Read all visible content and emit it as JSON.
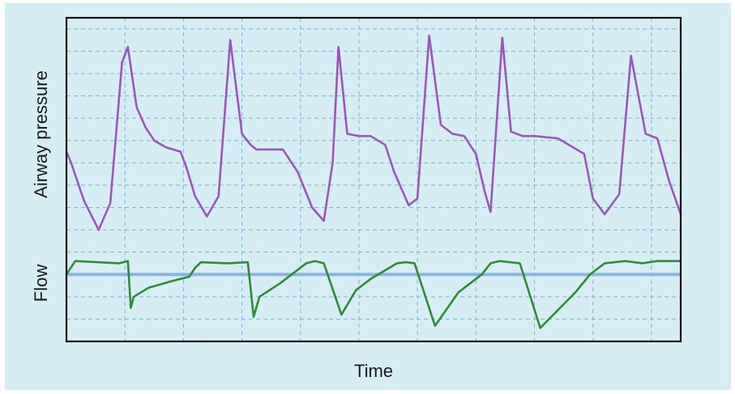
{
  "chart_data": {
    "type": "line",
    "title": "",
    "xlabel": "Time",
    "ylabels": [
      "Airway pressure",
      "Flow"
    ],
    "grid": true,
    "xlim": [
      0,
      10.5
    ],
    "ylim": [
      0,
      14.5
    ],
    "series": [
      {
        "name": "",
        "label_ref": "Airway pressure",
        "color": "#9b57b6",
        "x": [
          0.0,
          0.08,
          0.3,
          0.55,
          0.75,
          0.95,
          1.05,
          1.2,
          1.35,
          1.5,
          1.7,
          1.95,
          2.05,
          2.2,
          2.4,
          2.6,
          2.8,
          3.0,
          3.15,
          3.25,
          3.45,
          3.7,
          3.95,
          4.2,
          4.4,
          4.55,
          4.65,
          4.8,
          5.0,
          5.2,
          5.45,
          5.6,
          5.85,
          6.0,
          6.2,
          6.4,
          6.6,
          6.8,
          7.0,
          7.15,
          7.25,
          7.45,
          7.6,
          7.8,
          8.0,
          8.4,
          8.85,
          9.0,
          9.2,
          9.45,
          9.65,
          9.9,
          10.1,
          10.3,
          10.5
        ],
        "y": [
          8.5,
          8.0,
          6.3,
          5.0,
          6.2,
          12.5,
          13.2,
          10.5,
          9.6,
          9.0,
          8.7,
          8.5,
          7.8,
          6.5,
          5.6,
          6.5,
          13.5,
          9.3,
          8.8,
          8.6,
          8.6,
          8.6,
          7.6,
          6.0,
          5.4,
          8.0,
          13.2,
          9.3,
          9.2,
          9.2,
          8.8,
          7.6,
          6.1,
          6.4,
          13.7,
          9.7,
          9.3,
          9.2,
          8.4,
          6.7,
          5.8,
          13.6,
          9.4,
          9.2,
          9.2,
          9.1,
          8.4,
          6.4,
          5.7,
          6.6,
          12.8,
          9.3,
          9.1,
          7.2,
          5.7
        ]
      },
      {
        "name": "",
        "label_ref": "Flow",
        "color": "#2f8b3a",
        "x": [
          0.0,
          0.15,
          0.9,
          1.05,
          1.1,
          1.15,
          1.4,
          1.8,
          2.1,
          2.2,
          2.3,
          2.75,
          3.1,
          3.2,
          3.3,
          3.65,
          4.1,
          4.25,
          4.4,
          4.7,
          4.95,
          5.2,
          5.65,
          5.8,
          5.95,
          6.3,
          6.7,
          7.1,
          7.25,
          7.4,
          7.75,
          8.1,
          8.7,
          8.95,
          9.2,
          9.55,
          9.85,
          10.1,
          10.5
        ],
        "y": [
          3.0,
          3.6,
          3.5,
          3.6,
          1.5,
          2.0,
          2.4,
          2.7,
          2.9,
          3.3,
          3.55,
          3.5,
          3.55,
          1.1,
          2.0,
          2.6,
          3.5,
          3.6,
          3.5,
          1.2,
          2.3,
          2.8,
          3.5,
          3.55,
          3.5,
          0.7,
          2.2,
          3.0,
          3.5,
          3.6,
          3.5,
          0.6,
          2.2,
          3.0,
          3.5,
          3.6,
          3.5,
          3.6,
          3.6
        ]
      }
    ],
    "baseline": {
      "y": 3.0,
      "color": "#85b7e0"
    }
  }
}
